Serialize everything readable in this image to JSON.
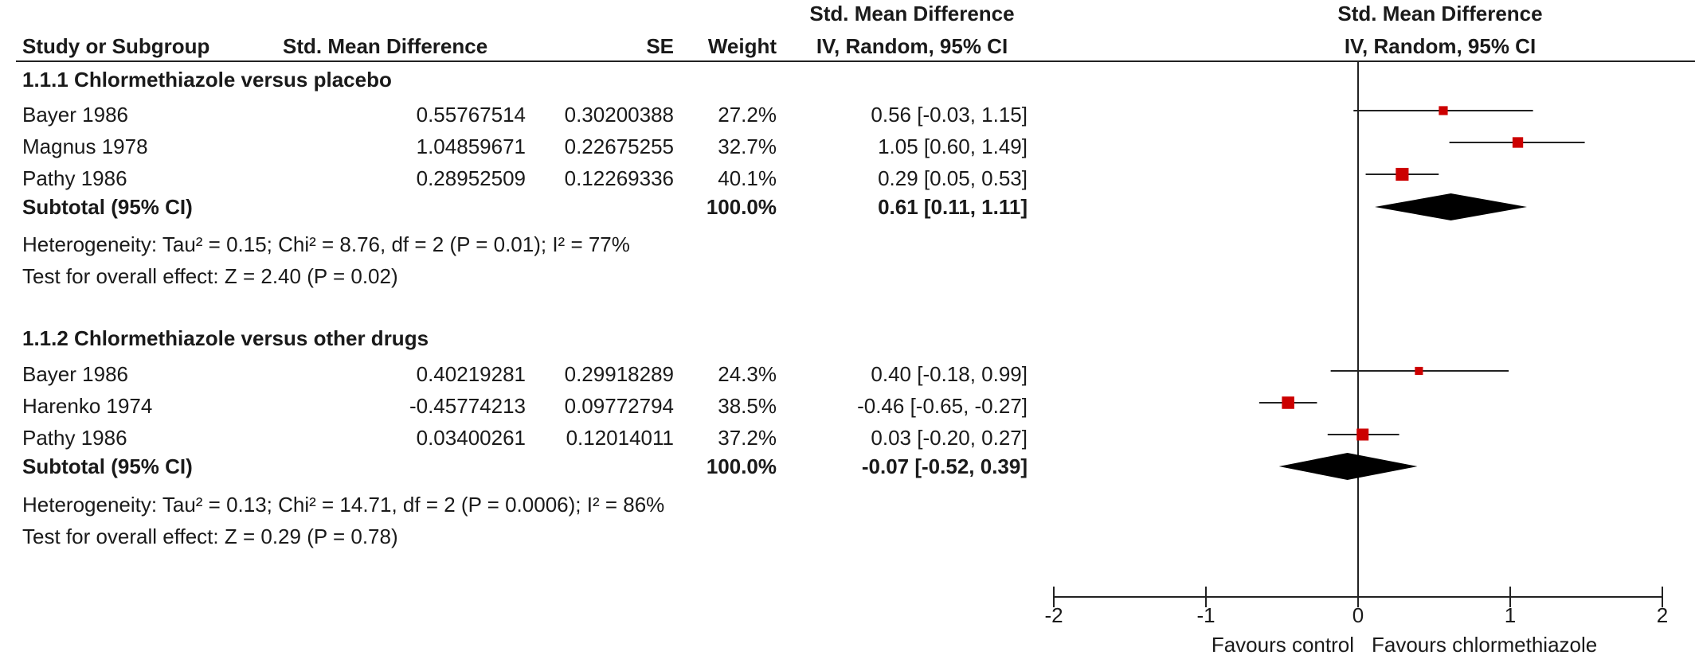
{
  "header": {
    "study_or_subgroup": "Study or Subgroup",
    "std_mean_difference": "Std. Mean Difference",
    "se": "SE",
    "weight": "Weight",
    "ci_title_line1": "Std. Mean Difference",
    "ci_title_line2": "IV, Random, 95% CI",
    "plot_title_line1": "Std. Mean Difference",
    "plot_title_line2": "IV, Random, 95% CI"
  },
  "groups": [
    {
      "title": "1.1.1 Chlormethiazole versus placebo",
      "studies": [
        {
          "name": "Bayer 1986",
          "smd": "0.55767514",
          "se": "0.30200388",
          "weight": "27.2%",
          "ci": "0.56 [-0.03, 1.15]"
        },
        {
          "name": "Magnus 1978",
          "smd": "1.04859671",
          "se": "0.22675255",
          "weight": "32.7%",
          "ci": "1.05 [0.60, 1.49]"
        },
        {
          "name": "Pathy 1986",
          "smd": "0.28952509",
          "se": "0.12269336",
          "weight": "40.1%",
          "ci": "0.29 [0.05, 0.53]"
        }
      ],
      "subtotal": {
        "label": "Subtotal (95% CI)",
        "weight": "100.0%",
        "ci": "0.61 [0.11, 1.11]"
      },
      "heterogeneity": "Heterogeneity: Tau² = 0.15; Chi² = 8.76, df = 2 (P = 0.01); I² = 77%",
      "overall": "Test for overall effect: Z = 2.40 (P = 0.02)"
    },
    {
      "title": "1.1.2 Chlormethiazole versus other drugs",
      "studies": [
        {
          "name": "Bayer 1986",
          "smd": "0.40219281",
          "se": "0.29918289",
          "weight": "24.3%",
          "ci": "0.40 [-0.18, 0.99]"
        },
        {
          "name": "Harenko 1974",
          "smd": "-0.45774213",
          "se": "0.09772794",
          "weight": "38.5%",
          "ci": "-0.46 [-0.65, -0.27]"
        },
        {
          "name": "Pathy 1986",
          "smd": "0.03400261",
          "se": "0.12014011",
          "weight": "37.2%",
          "ci": "0.03 [-0.20, 0.27]"
        }
      ],
      "subtotal": {
        "label": "Subtotal (95% CI)",
        "weight": "100.0%",
        "ci": "-0.07 [-0.52, 0.39]"
      },
      "heterogeneity": "Heterogeneity: Tau² = 0.13; Chi² = 14.71, df = 2 (P = 0.0006); I² = 86%",
      "overall": "Test for overall effect: Z = 0.29 (P = 0.78)"
    }
  ],
  "axis": {
    "ticks": [
      "-2",
      "-1",
      "0",
      "1",
      "2"
    ],
    "favours_left": "Favours control",
    "favours_right": "Favours chlormethiazole"
  },
  "colors": {
    "marker": "#cc0000",
    "diamond": "#000000",
    "line": "#222222"
  },
  "chart_data": {
    "type": "forest",
    "xlim": [
      -2,
      2
    ],
    "x_ticks": [
      -2,
      -1,
      0,
      1,
      2
    ],
    "reference_line": 0,
    "studies": [
      {
        "group": "1.1.1 Chlormethiazole versus placebo",
        "name": "Bayer 1986",
        "estimate": 0.56,
        "lower": -0.03,
        "upper": 1.15,
        "weight": 27.2
      },
      {
        "group": "1.1.1 Chlormethiazole versus placebo",
        "name": "Magnus 1978",
        "estimate": 1.05,
        "lower": 0.6,
        "upper": 1.49,
        "weight": 32.7
      },
      {
        "group": "1.1.1 Chlormethiazole versus placebo",
        "name": "Pathy 1986",
        "estimate": 0.29,
        "lower": 0.05,
        "upper": 0.53,
        "weight": 40.1
      },
      {
        "group": "1.1.2 Chlormethiazole versus other drugs",
        "name": "Bayer 1986",
        "estimate": 0.4,
        "lower": -0.18,
        "upper": 0.99,
        "weight": 24.3
      },
      {
        "group": "1.1.2 Chlormethiazole versus other drugs",
        "name": "Harenko 1974",
        "estimate": -0.46,
        "lower": -0.65,
        "upper": -0.27,
        "weight": 38.5
      },
      {
        "group": "1.1.2 Chlormethiazole versus other drugs",
        "name": "Pathy 1986",
        "estimate": 0.03,
        "lower": -0.2,
        "upper": 0.27,
        "weight": 37.2
      }
    ],
    "subtotals": [
      {
        "group": "1.1.1 Chlormethiazole versus placebo",
        "estimate": 0.61,
        "lower": 0.11,
        "upper": 1.11
      },
      {
        "group": "1.1.2 Chlormethiazole versus other drugs",
        "estimate": -0.07,
        "lower": -0.52,
        "upper": 0.39
      }
    ]
  }
}
